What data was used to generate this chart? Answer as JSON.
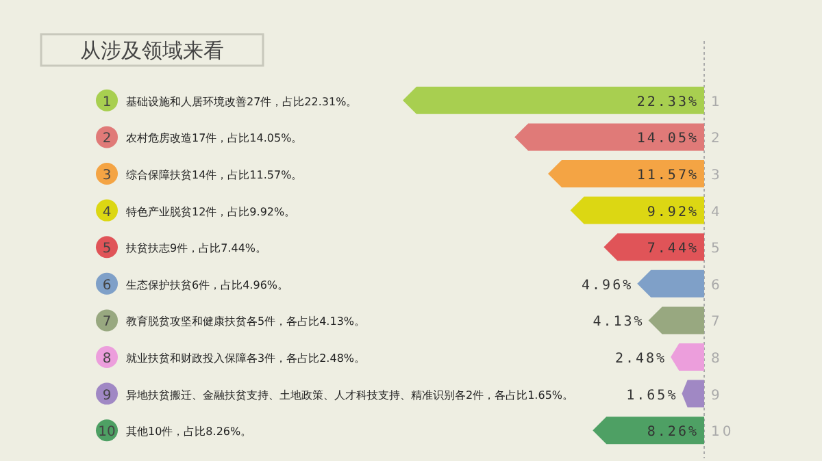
{
  "chart_data": {
    "type": "bar",
    "orientation": "horizontal",
    "title": "从涉及领域来看",
    "categories": [
      "1",
      "2",
      "3",
      "4",
      "5",
      "6",
      "7",
      "8",
      "9",
      "10"
    ],
    "values": [
      22.33,
      14.05,
      11.57,
      9.92,
      7.44,
      4.96,
      4.13,
      2.48,
      1.65,
      8.26
    ],
    "value_labels": [
      "22.33%",
      "14.05%",
      "11.57%",
      "9.92%",
      "7.44%",
      "4.96%",
      "4.13%",
      "2.48%",
      "1.65%",
      "8.26%"
    ],
    "colors": [
      "#a8cf50",
      "#e07a78",
      "#f4a444",
      "#dcd713",
      "#e05458",
      "#7fa0c8",
      "#98a880",
      "#ec9edc",
      "#a088c4",
      "#4ea064"
    ],
    "annotations": [
      "基础设施和人居环境改善27件，占比22.31%。",
      "农村危房改造17件，占比14.05%。",
      "综合保障扶贫14件，占比11.57%。",
      "特色产业脱贫12件，占比9.92%。",
      "扶贫扶志9件，占比7.44%。",
      "生态保护扶贫6件，占比4.96%。",
      "教育脱贫攻坚和健康扶贫各5件，各占比4.13%。",
      "就业扶贫和财政投入保障各3件，各占比2.48%。",
      "异地扶贫搬迁、金融扶贫支持、土地政策、人才科技支持、精准识别各2件，各占比1.65%。",
      "其他10件，占比8.26%。"
    ]
  }
}
